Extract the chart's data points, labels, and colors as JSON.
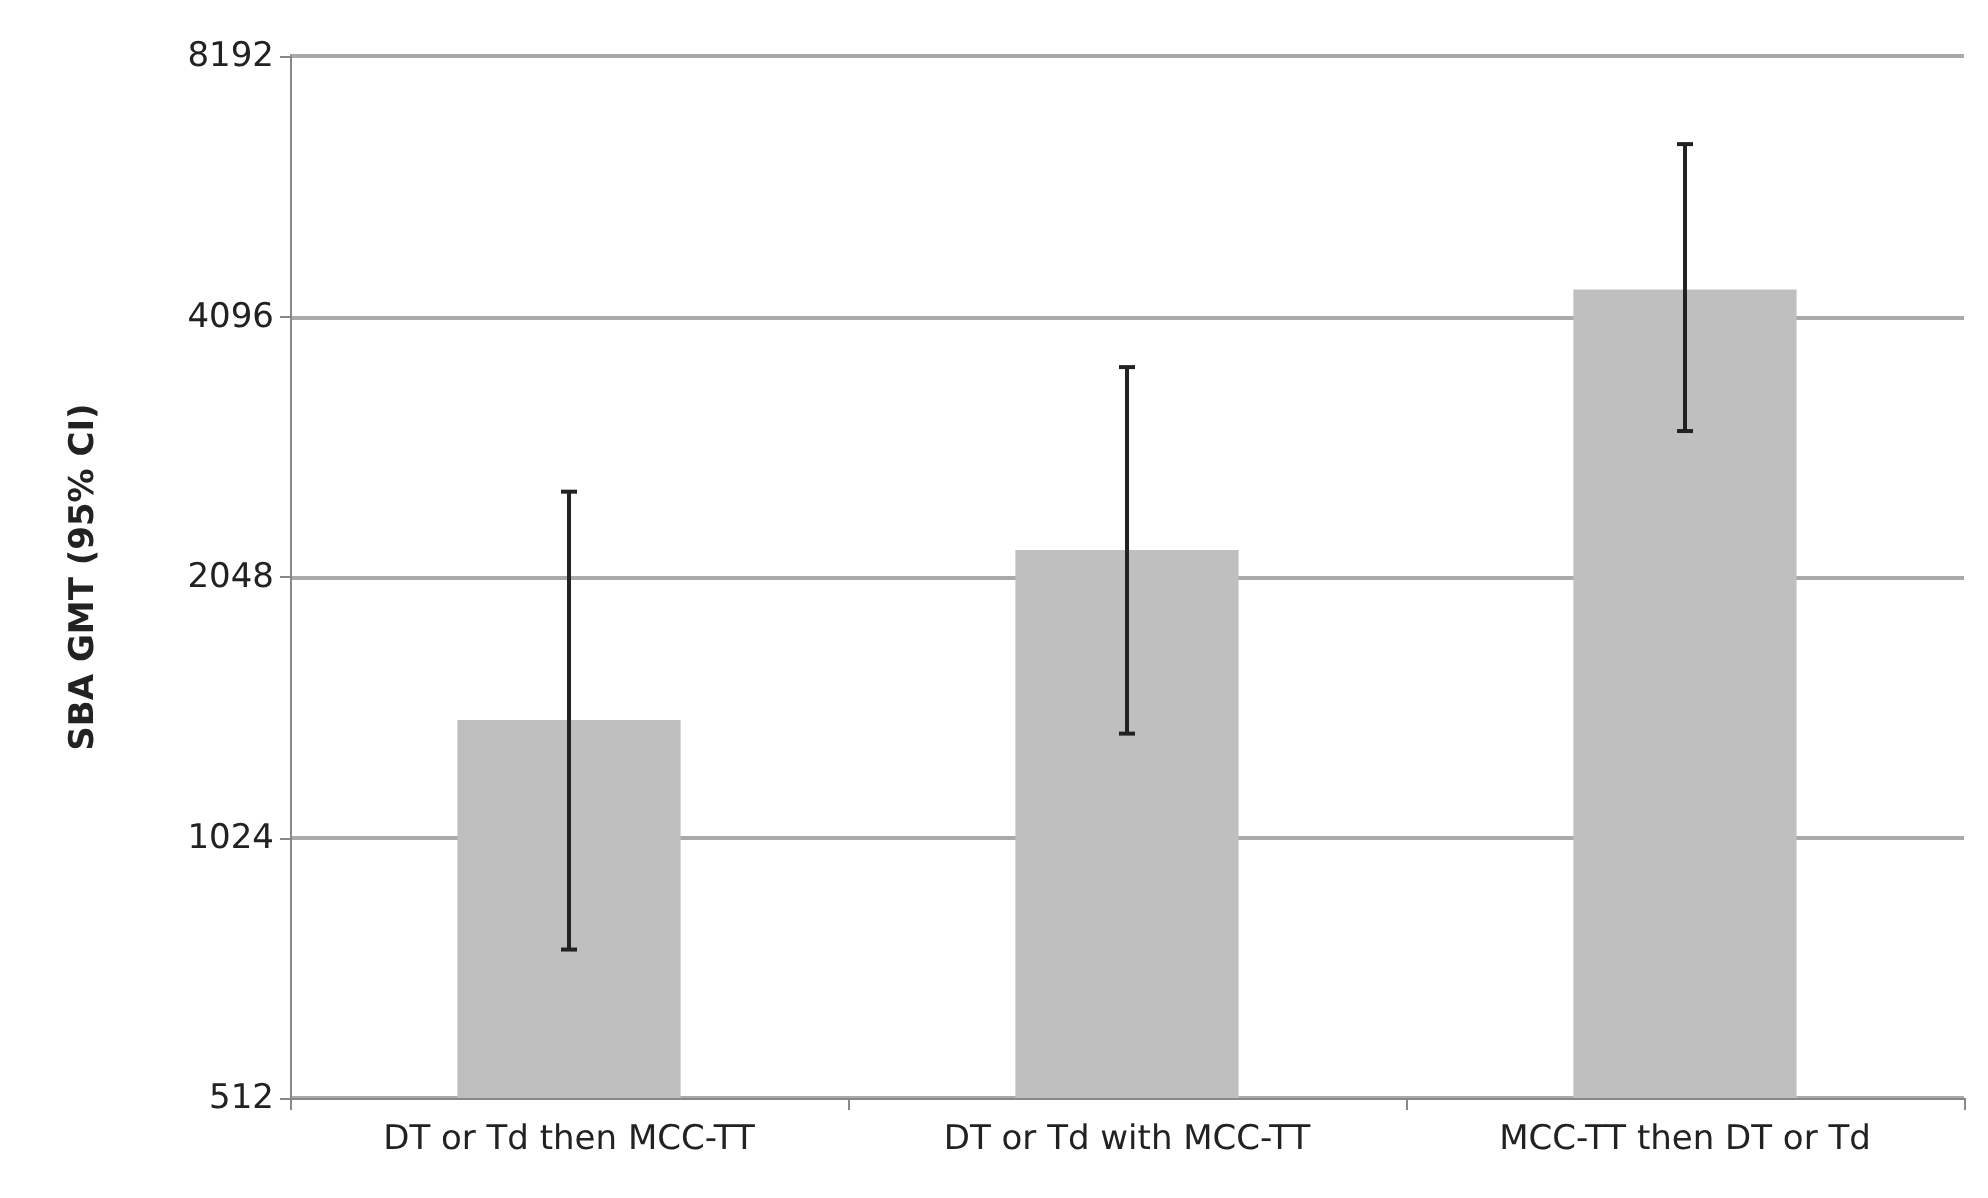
{
  "chart_data": {
    "type": "bar",
    "ylabel": "SBA GMT (95% CI)",
    "categories": [
      "DT or Td then MCC-TT",
      "DT or Td with MCC-TT",
      "MCC-TT then DT or Td"
    ],
    "values": [
      1400,
      2200,
      4400
    ],
    "errors": [
      [
        760,
        2570
      ],
      [
        1350,
        3580
      ],
      [
        3020,
        6480
      ]
    ],
    "color": "#bfbfbf",
    "log": "y",
    "ylim": [
      512,
      8192
    ],
    "yticks": [
      512,
      1024,
      2048,
      4096,
      8192
    ],
    "grid": "y"
  }
}
